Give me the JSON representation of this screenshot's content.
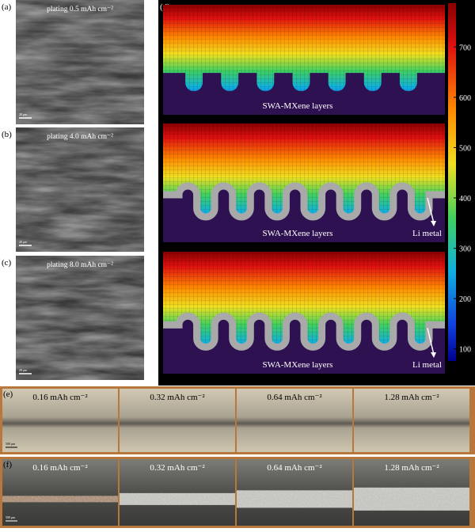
{
  "sem": [
    {
      "label": "(a)",
      "caption": "plating 0.5 mAh cm⁻²",
      "scale_bar": "20 μm"
    },
    {
      "label": "(b)",
      "caption": "plating 4.0 mAh cm⁻²",
      "scale_bar": "20 μm"
    },
    {
      "label": "(c)",
      "caption": "plating 8.0 mAh cm⁻²",
      "scale_bar": "20 μm"
    }
  ],
  "simulation": {
    "label": "(d)",
    "layers": [
      "SWA-MXene layers",
      "SWA-MXene layers",
      "SWA-MXene layers"
    ],
    "li_metal": [
      "Li metal",
      "Li metal"
    ],
    "colorbar": {
      "lim": [
        76,
        787
      ],
      "ticks": [
        100,
        200,
        300,
        400,
        500,
        600,
        700
      ]
    }
  },
  "optical": [
    {
      "label": "(e)",
      "captions": [
        "0.16 mAh cm⁻²",
        "0.32 mAh cm⁻²",
        "0.64 mAh cm⁻²",
        "1.28 mAh cm⁻²"
      ],
      "scale_bar": "500 μm"
    },
    {
      "label": "(f)",
      "captions": [
        "0.16 mAh cm⁻²",
        "0.32 mAh cm⁻²",
        "0.64 mAh cm⁻²",
        "1.28 mAh cm⁻²"
      ],
      "scale_bar": "500 μm"
    }
  ]
}
